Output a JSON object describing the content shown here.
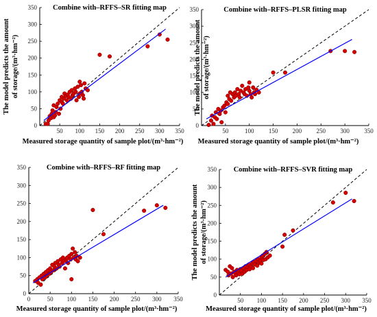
{
  "colors": {
    "points": "#d40000",
    "point_edge": "#7a0000",
    "fit_line": "#0000ff",
    "ref_line": "#000000",
    "axis": "#000000"
  },
  "chart_data": [
    {
      "type": "scatter",
      "title": "Combine with–RFFS–SR fitting map",
      "xlabel": "Measured storage quantity of sample plot/(m³·hm⁻²)",
      "ylabel": [
        "The model predicts the amount",
        "of storage/(m³·hm⁻²)"
      ],
      "xlim": [
        0,
        350
      ],
      "ylim": [
        0,
        350
      ],
      "xticks": [
        "50",
        "100",
        "150",
        "200",
        "250",
        "300",
        "350"
      ],
      "yticks": [
        "0",
        "50",
        "100",
        "150",
        "200",
        "250",
        "300",
        "350"
      ],
      "reference_line": "1:1 dashed",
      "fit_line": [
        [
          10,
          15
        ],
        [
          315,
          286
        ]
      ],
      "points": [
        [
          15,
          5
        ],
        [
          20,
          5
        ],
        [
          22,
          15
        ],
        [
          25,
          28
        ],
        [
          28,
          22
        ],
        [
          30,
          35
        ],
        [
          32,
          45
        ],
        [
          35,
          25
        ],
        [
          35,
          60
        ],
        [
          38,
          30
        ],
        [
          40,
          40
        ],
        [
          42,
          55
        ],
        [
          45,
          65
        ],
        [
          48,
          35
        ],
        [
          50,
          75
        ],
        [
          52,
          50
        ],
        [
          55,
          70
        ],
        [
          55,
          85
        ],
        [
          58,
          65
        ],
        [
          60,
          80
        ],
        [
          62,
          95
        ],
        [
          65,
          88
        ],
        [
          68,
          75
        ],
        [
          70,
          92
        ],
        [
          72,
          85
        ],
        [
          75,
          100
        ],
        [
          78,
          80
        ],
        [
          80,
          105
        ],
        [
          82,
          90
        ],
        [
          85,
          95
        ],
        [
          88,
          110
        ],
        [
          90,
          100
        ],
        [
          92,
          75
        ],
        [
          95,
          115
        ],
        [
          98,
          85
        ],
        [
          100,
          95
        ],
        [
          100,
          130
        ],
        [
          103,
          120
        ],
        [
          105,
          100
        ],
        [
          108,
          90
        ],
        [
          110,
          80
        ],
        [
          112,
          125
        ],
        [
          115,
          110
        ],
        [
          120,
          105
        ],
        [
          150,
          210
        ],
        [
          175,
          205
        ],
        [
          270,
          235
        ],
        [
          300,
          270
        ],
        [
          320,
          255
        ]
      ]
    },
    {
      "type": "scatter",
      "title": "Combine with–RFFS–PLSR fitting map",
      "xlabel": "Measured storage quantity of sample plot/(m³·hm⁻²)",
      "ylabel": [
        "The model predicts the amount",
        "of storage/(m³·hm⁻²)"
      ],
      "xlim": [
        0,
        350
      ],
      "ylim": [
        0,
        350
      ],
      "xticks": [
        "50",
        "100",
        "150",
        "200",
        "250",
        "300",
        "350"
      ],
      "yticks": [
        "0",
        "50",
        "100",
        "150",
        "200",
        "250",
        "300",
        "350"
      ],
      "reference_line": "1:1 dashed",
      "fit_line": [
        [
          10,
          20
        ],
        [
          315,
          260
        ]
      ],
      "points": [
        [
          15,
          2
        ],
        [
          20,
          15
        ],
        [
          22,
          30
        ],
        [
          25,
          5
        ],
        [
          28,
          25
        ],
        [
          30,
          40
        ],
        [
          32,
          20
        ],
        [
          35,
          50
        ],
        [
          38,
          35
        ],
        [
          40,
          45
        ],
        [
          42,
          10
        ],
        [
          45,
          55
        ],
        [
          48,
          60
        ],
        [
          50,
          40
        ],
        [
          52,
          70
        ],
        [
          55,
          65
        ],
        [
          55,
          90
        ],
        [
          58,
          80
        ],
        [
          60,
          100
        ],
        [
          62,
          75
        ],
        [
          65,
          95
        ],
        [
          68,
          85
        ],
        [
          70,
          100
        ],
        [
          72,
          90
        ],
        [
          75,
          110
        ],
        [
          78,
          95
        ],
        [
          80,
          85
        ],
        [
          82,
          105
        ],
        [
          85,
          120
        ],
        [
          88,
          100
        ],
        [
          90,
          95
        ],
        [
          92,
          110
        ],
        [
          95,
          90
        ],
        [
          98,
          115
        ],
        [
          100,
          105
        ],
        [
          100,
          130
        ],
        [
          103,
          95
        ],
        [
          105,
          85
        ],
        [
          108,
          115
        ],
        [
          110,
          100
        ],
        [
          112,
          95
        ],
        [
          115,
          108
        ],
        [
          120,
          100
        ],
        [
          150,
          160
        ],
        [
          175,
          160
        ],
        [
          270,
          225
        ],
        [
          300,
          225
        ],
        [
          320,
          222
        ]
      ]
    },
    {
      "type": "scatter",
      "title": "Combine with–RFFS–RF fitting map",
      "xlabel": "Measured storage quantity of sample plot/(m³·hm⁻²)",
      "ylabel": "",
      "xlim": [
        0,
        350
      ],
      "ylim": [
        0,
        350
      ],
      "xticks": [
        "0",
        "50",
        "100",
        "150",
        "200",
        "250",
        "300",
        "350"
      ],
      "yticks": [
        "0",
        "50",
        "100",
        "150",
        "200",
        "250",
        "300",
        "350"
      ],
      "reference_line": "1:1 dashed",
      "fit_line": [
        [
          10,
          30
        ],
        [
          315,
          245
        ]
      ],
      "points": [
        [
          15,
          35
        ],
        [
          20,
          40
        ],
        [
          22,
          30
        ],
        [
          25,
          45
        ],
        [
          28,
          25
        ],
        [
          30,
          50
        ],
        [
          32,
          40
        ],
        [
          35,
          55
        ],
        [
          38,
          45
        ],
        [
          40,
          60
        ],
        [
          42,
          50
        ],
        [
          45,
          65
        ],
        [
          48,
          55
        ],
        [
          50,
          70
        ],
        [
          52,
          60
        ],
        [
          55,
          80
        ],
        [
          58,
          65
        ],
        [
          60,
          75
        ],
        [
          62,
          85
        ],
        [
          65,
          70
        ],
        [
          68,
          90
        ],
        [
          70,
          80
        ],
        [
          72,
          75
        ],
        [
          75,
          95
        ],
        [
          78,
          85
        ],
        [
          80,
          100
        ],
        [
          82,
          90
        ],
        [
          85,
          70
        ],
        [
          88,
          95
        ],
        [
          90,
          100
        ],
        [
          92,
          85
        ],
        [
          95,
          105
        ],
        [
          98,
          95
        ],
        [
          100,
          40
        ],
        [
          100,
          110
        ],
        [
          103,
          125
        ],
        [
          105,
          100
        ],
        [
          108,
          115
        ],
        [
          110,
          95
        ],
        [
          112,
          105
        ],
        [
          115,
          90
        ],
        [
          120,
          100
        ],
        [
          150,
          232
        ],
        [
          175,
          165
        ],
        [
          270,
          230
        ],
        [
          300,
          245
        ],
        [
          320,
          238
        ]
      ]
    },
    {
      "type": "scatter",
      "title": "Combine with–RFFS–SVR fitting map",
      "xlabel": "Measured storage quantity of sample plot/(m³·hm⁻²)",
      "ylabel": [
        "The model predicts the amount",
        "of storage/(m³·hm⁻²)"
      ],
      "xlim": [
        0,
        350
      ],
      "ylim": [
        0,
        350
      ],
      "xticks": [
        "50",
        "100",
        "150",
        "200",
        "250",
        "300",
        "350"
      ],
      "yticks": [
        "0",
        "50",
        "100",
        "150",
        "200",
        "250",
        "300",
        "350"
      ],
      "reference_line": "1:1 dashed",
      "fit_line": [
        [
          15,
          50
        ],
        [
          315,
          268
        ]
      ],
      "points": [
        [
          15,
          70
        ],
        [
          20,
          65
        ],
        [
          22,
          55
        ],
        [
          25,
          80
        ],
        [
          28,
          60
        ],
        [
          30,
          75
        ],
        [
          32,
          50
        ],
        [
          35,
          65
        ],
        [
          38,
          60
        ],
        [
          40,
          55
        ],
        [
          42,
          70
        ],
        [
          45,
          62
        ],
        [
          48,
          58
        ],
        [
          50,
          72
        ],
        [
          52,
          68
        ],
        [
          55,
          60
        ],
        [
          58,
          75
        ],
        [
          60,
          65
        ],
        [
          62,
          80
        ],
        [
          65,
          70
        ],
        [
          68,
          78
        ],
        [
          70,
          85
        ],
        [
          72,
          72
        ],
        [
          75,
          80
        ],
        [
          78,
          88
        ],
        [
          80,
          75
        ],
        [
          82,
          92
        ],
        [
          85,
          85
        ],
        [
          88,
          95
        ],
        [
          90,
          82
        ],
        [
          92,
          100
        ],
        [
          95,
          90
        ],
        [
          98,
          95
        ],
        [
          100,
          88
        ],
        [
          100,
          105
        ],
        [
          103,
          110
        ],
        [
          105,
          98
        ],
        [
          108,
          115
        ],
        [
          110,
          100
        ],
        [
          112,
          120
        ],
        [
          115,
          105
        ],
        [
          120,
          110
        ],
        [
          150,
          135
        ],
        [
          155,
          168
        ],
        [
          175,
          180
        ],
        [
          270,
          258
        ],
        [
          300,
          285
        ],
        [
          320,
          262
        ]
      ]
    }
  ]
}
